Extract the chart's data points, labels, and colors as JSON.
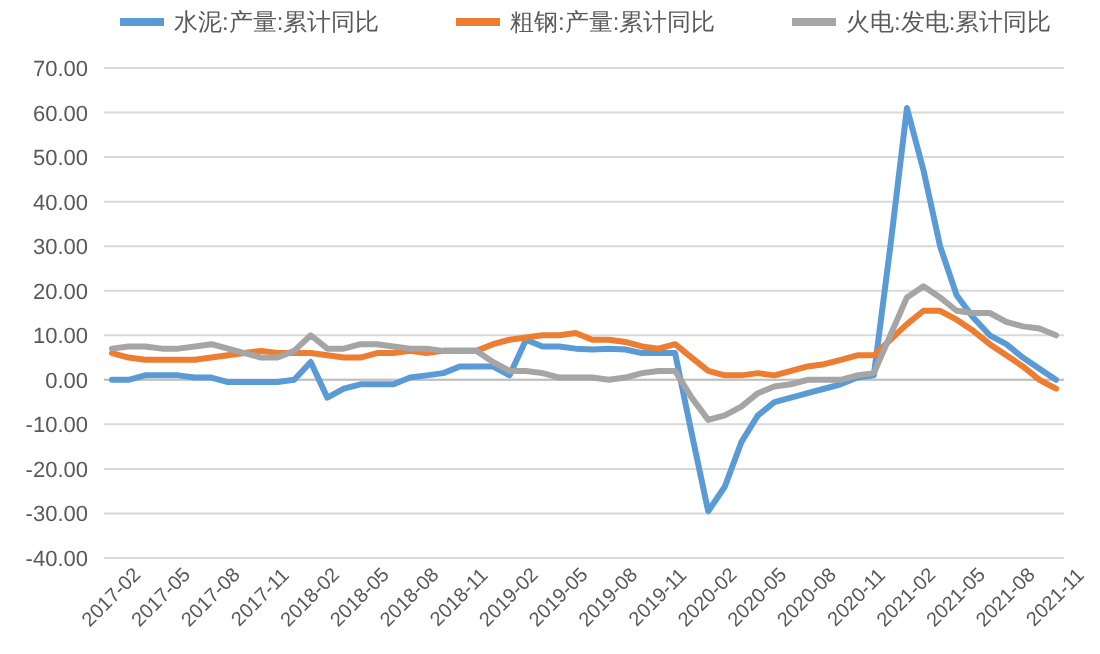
{
  "chart_data": {
    "type": "line",
    "legend": "top",
    "grid": "y",
    "marker": "none",
    "line_style": "solid",
    "categories": [
      "2017-02",
      null,
      null,
      "2017-05",
      null,
      null,
      "2017-08",
      null,
      null,
      "2017-11",
      null,
      null,
      "2018-02",
      null,
      null,
      "2018-05",
      null,
      null,
      "2018-08",
      null,
      null,
      "2018-11",
      null,
      null,
      "2019-02",
      null,
      null,
      "2019-05",
      null,
      null,
      "2019-08",
      null,
      null,
      "2019-11",
      null,
      null,
      "2020-02",
      null,
      null,
      "2020-05",
      null,
      null,
      "2020-08",
      null,
      null,
      "2020-11",
      null,
      null,
      "2021-02",
      null,
      null,
      "2021-05",
      null,
      null,
      "2021-08",
      null,
      null,
      "2021-11"
    ],
    "ylim": [
      -40,
      70
    ],
    "yticks": [
      {
        "value": -40,
        "label": "-40.00"
      },
      {
        "value": -30,
        "label": "-30.00"
      },
      {
        "value": -20,
        "label": "-20.00"
      },
      {
        "value": -10,
        "label": "-10.00"
      },
      {
        "value": 0,
        "label": "0.00"
      },
      {
        "value": 10,
        "label": "10.00"
      },
      {
        "value": 20,
        "label": "20.00"
      },
      {
        "value": 30,
        "label": "30.00"
      },
      {
        "value": 40,
        "label": "40.00"
      },
      {
        "value": 50,
        "label": "50.00"
      },
      {
        "value": 60,
        "label": "60.00"
      },
      {
        "value": 70,
        "label": "70.00"
      }
    ],
    "series": [
      {
        "name": "水泥:产量:累计同比",
        "color": "#5b9bd5",
        "values": [
          0,
          0,
          1,
          1,
          1,
          0.5,
          0.5,
          -0.5,
          -0.5,
          -0.5,
          -0.5,
          0,
          4,
          -4,
          -2,
          -1,
          -1,
          -1,
          0.5,
          1,
          1.5,
          3,
          3,
          3,
          1,
          9,
          7.5,
          7.5,
          7,
          6.8,
          7,
          6.8,
          6,
          6,
          6,
          -12,
          -29.5,
          -24,
          -14,
          -8,
          -5,
          -4,
          -3,
          -2,
          -1,
          0.5,
          1,
          30,
          61,
          47,
          30,
          19,
          14,
          10,
          8,
          5,
          2.5,
          0
        ]
      },
      {
        "name": "粗钢:产量:累计同比",
        "color": "#ed7d31",
        "values": [
          6,
          5,
          4.5,
          4.5,
          4.5,
          4.5,
          5,
          5.5,
          6,
          6.5,
          6,
          6,
          6,
          5.5,
          5,
          5,
          6,
          6,
          6.5,
          6,
          6.5,
          6.5,
          6.5,
          8,
          9,
          9.5,
          10,
          10,
          10.5,
          9,
          9,
          8.5,
          7.5,
          7,
          8,
          5,
          2,
          1,
          1,
          1.5,
          1,
          2,
          3,
          3.5,
          4.5,
          5.5,
          5.5,
          9,
          12.5,
          15.5,
          15.5,
          13.5,
          11,
          8,
          5.5,
          3,
          0,
          -2
        ]
      },
      {
        "name": "火电:发电:累计同比",
        "color": "#a5a5a5",
        "values": [
          7,
          7.5,
          7.5,
          7,
          7,
          7.5,
          8,
          7,
          6,
          5,
          5,
          6.5,
          10,
          7,
          7,
          8,
          8,
          7.5,
          7,
          7,
          6.5,
          6.5,
          6.5,
          4,
          2,
          2,
          1.5,
          0.5,
          0.5,
          0.5,
          0,
          0.5,
          1.5,
          2,
          2,
          -4,
          -9,
          -8,
          -6,
          -3,
          -1.5,
          -1,
          0,
          0,
          0,
          1,
          1.5,
          10,
          18.5,
          21,
          18.5,
          15.5,
          15,
          15,
          13,
          12,
          11.5,
          10
        ]
      }
    ]
  }
}
